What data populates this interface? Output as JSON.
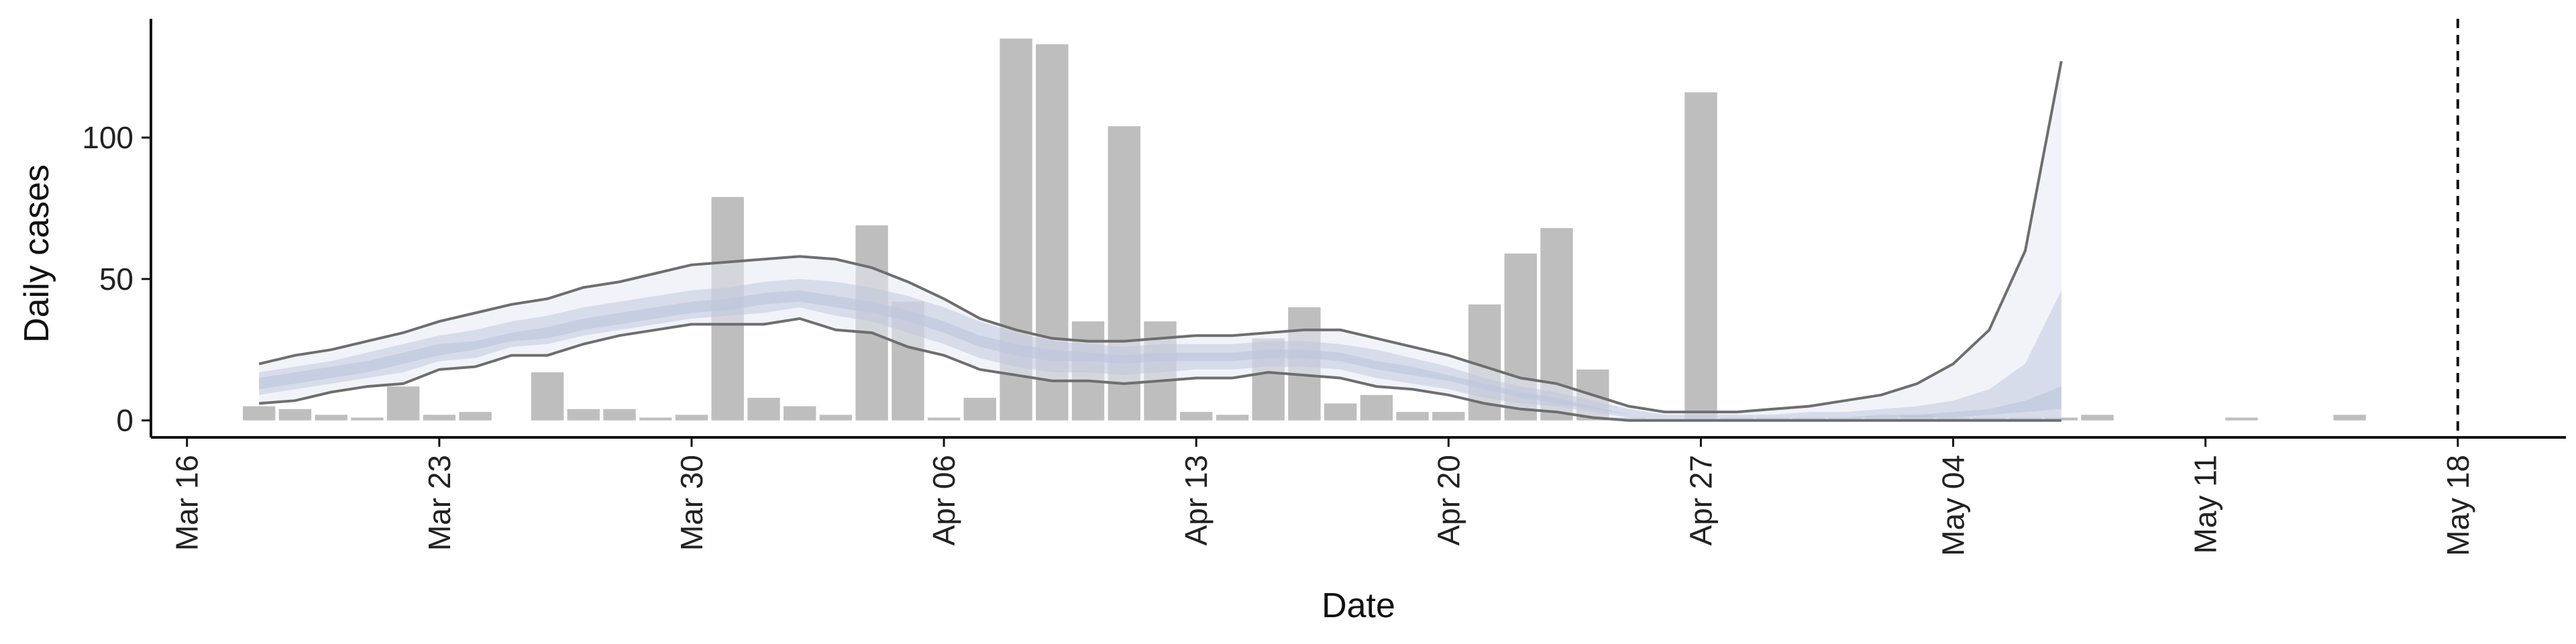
{
  "chart_data": {
    "type": "bar",
    "xlabel": "Date",
    "ylabel": "Daily cases",
    "ylim": [
      -6,
      142
    ],
    "xlim": [
      "2020-03-15",
      "2020-05-21"
    ],
    "yticks": [
      0,
      50,
      100
    ],
    "xticks": [
      "Mar 16",
      "Mar 23",
      "Mar 30",
      "Apr 06",
      "Apr 13",
      "Apr 20",
      "Apr 27",
      "May 04",
      "May 11",
      "May 18"
    ],
    "xtick_dates": [
      "2020-03-16",
      "2020-03-23",
      "2020-03-30",
      "2020-04-06",
      "2020-04-13",
      "2020-04-20",
      "2020-04-27",
      "2020-05-04",
      "2020-05-11",
      "2020-05-18"
    ],
    "vline_date": "2020-05-18",
    "bar_color": "#bebebe",
    "bars": {
      "dates": [
        "2020-03-18",
        "2020-03-19",
        "2020-03-20",
        "2020-03-21",
        "2020-03-22",
        "2020-03-23",
        "2020-03-24",
        "2020-03-26",
        "2020-03-27",
        "2020-03-28",
        "2020-03-29",
        "2020-03-30",
        "2020-03-31",
        "2020-04-01",
        "2020-04-02",
        "2020-04-03",
        "2020-04-04",
        "2020-04-05",
        "2020-04-06",
        "2020-04-07",
        "2020-04-08",
        "2020-04-09",
        "2020-04-10",
        "2020-04-11",
        "2020-04-12",
        "2020-04-13",
        "2020-04-14",
        "2020-04-15",
        "2020-04-16",
        "2020-04-17",
        "2020-04-18",
        "2020-04-19",
        "2020-04-20",
        "2020-04-21",
        "2020-04-22",
        "2020-04-23",
        "2020-04-24",
        "2020-04-25",
        "2020-04-27",
        "2020-04-28",
        "2020-04-29",
        "2020-04-30",
        "2020-05-01",
        "2020-05-02",
        "2020-05-03",
        "2020-05-04",
        "2020-05-05",
        "2020-05-06",
        "2020-05-07",
        "2020-05-08",
        "2020-05-12",
        "2020-05-15"
      ],
      "values": [
        5,
        4,
        2,
        1,
        12,
        2,
        3,
        17,
        4,
        4,
        1,
        2,
        79,
        8,
        5,
        2,
        69,
        42,
        1,
        8,
        135,
        133,
        35,
        104,
        35,
        3,
        2,
        29,
        40,
        6,
        9,
        3,
        3,
        41,
        59,
        68,
        18,
        1,
        116,
        1,
        1,
        1,
        1,
        1,
        2,
        1,
        1,
        1,
        1,
        2,
        1,
        2
      ]
    },
    "series": [
      {
        "name": "",
        "dates": [
          "2020-03-18",
          "2020-03-19",
          "2020-03-20",
          "2020-03-21",
          "2020-03-22",
          "2020-03-23",
          "2020-03-24",
          "2020-03-25",
          "2020-03-26",
          "2020-03-27",
          "2020-03-28",
          "2020-03-29",
          "2020-03-30",
          "2020-03-31",
          "2020-04-01",
          "2020-04-02",
          "2020-04-03",
          "2020-04-04",
          "2020-04-05",
          "2020-04-06",
          "2020-04-07",
          "2020-04-08",
          "2020-04-09",
          "2020-04-10",
          "2020-04-11",
          "2020-04-12",
          "2020-04-13",
          "2020-04-14",
          "2020-04-15",
          "2020-04-16",
          "2020-04-17",
          "2020-04-18",
          "2020-04-19",
          "2020-04-20",
          "2020-04-21",
          "2020-04-22",
          "2020-04-23",
          "2020-04-24",
          "2020-04-25",
          "2020-04-26",
          "2020-04-27",
          "2020-04-28",
          "2020-04-29",
          "2020-04-30",
          "2020-05-01",
          "2020-05-02",
          "2020-05-03",
          "2020-05-04",
          "2020-05-05",
          "2020-05-06",
          "2020-05-07"
        ],
        "upper": [
          20,
          23,
          25,
          28,
          31,
          35,
          38,
          41,
          43,
          47,
          49,
          52,
          55,
          56,
          57,
          58,
          57,
          54,
          49,
          43,
          36,
          32,
          29,
          28,
          28,
          29,
          30,
          30,
          31,
          32,
          32,
          29,
          26,
          23,
          19,
          15,
          13,
          9,
          5,
          3,
          3,
          3,
          4,
          5,
          7,
          9,
          13,
          20,
          32,
          60,
          127
        ],
        "lower": [
          6,
          7,
          10,
          12,
          13,
          18,
          19,
          23,
          23,
          27,
          30,
          32,
          34,
          34,
          34,
          36,
          32,
          31,
          26,
          23,
          18,
          16,
          14,
          14,
          13,
          14,
          15,
          15,
          17,
          16,
          15,
          12,
          11,
          9,
          6,
          4,
          3,
          1,
          0,
          0,
          0,
          0,
          0,
          0,
          0,
          0,
          0,
          0,
          0,
          0,
          0
        ],
        "outer_band_upper": [
          17,
          19,
          21,
          24,
          27,
          30,
          32,
          35,
          37,
          40,
          42,
          44,
          46,
          47,
          49,
          50,
          49,
          47,
          44,
          40,
          35,
          31,
          28,
          27,
          26,
          27,
          27,
          27,
          28,
          28,
          27,
          25,
          22,
          19,
          15,
          12,
          10,
          7,
          4,
          2,
          2,
          2,
          2,
          3,
          3,
          4,
          5,
          7,
          11,
          20,
          46
        ],
        "outer_band_lower": [
          9,
          11,
          13,
          15,
          17,
          21,
          22,
          26,
          27,
          30,
          32,
          34,
          36,
          37,
          38,
          40,
          37,
          35,
          31,
          27,
          22,
          19,
          17,
          17,
          16,
          17,
          18,
          18,
          19,
          19,
          18,
          15,
          13,
          11,
          8,
          6,
          5,
          3,
          1,
          0,
          0,
          0,
          0,
          0,
          0,
          0,
          0,
          0,
          0,
          0,
          0
        ],
        "inner_band_upper": [
          15,
          17,
          19,
          21,
          24,
          27,
          28,
          31,
          33,
          36,
          38,
          40,
          42,
          43,
          45,
          46,
          44,
          42,
          39,
          35,
          30,
          27,
          25,
          24,
          23,
          24,
          24,
          24,
          25,
          25,
          24,
          21,
          19,
          16,
          13,
          10,
          8,
          5,
          2,
          1,
          1,
          1,
          1,
          1,
          1,
          2,
          2,
          3,
          4,
          7,
          12
        ],
        "inner_band_lower": [
          11,
          13,
          15,
          17,
          20,
          23,
          25,
          28,
          29,
          32,
          34,
          36,
          38,
          39,
          41,
          42,
          40,
          38,
          35,
          31,
          26,
          23,
          21,
          21,
          20,
          21,
          21,
          21,
          22,
          22,
          21,
          18,
          16,
          14,
          11,
          8,
          6,
          4,
          2,
          1,
          1,
          1,
          1,
          1,
          1,
          1,
          1,
          1,
          2,
          3,
          4
        ],
        "line_color": "#6e6e6e",
        "band_color": "#bfc8de",
        "outer_band_color": "#e6e9f3"
      }
    ]
  }
}
